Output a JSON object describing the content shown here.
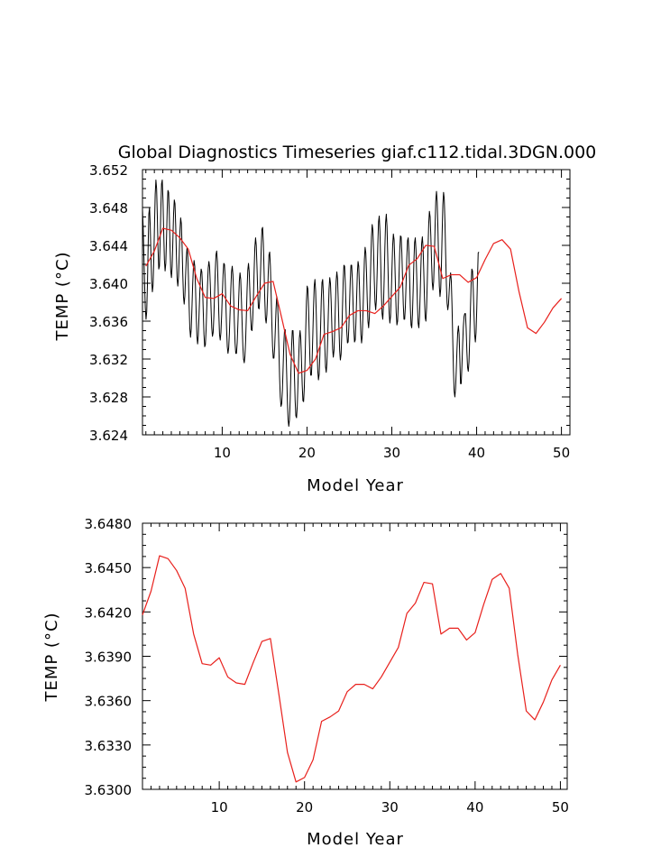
{
  "page_title": "Global Diagnostics Timeseries giaf.c112.tidal.3DGN.000",
  "chart_data": [
    {
      "type": "line",
      "title": "Global Diagnostics Timeseries giaf.c112.tidal.3DGN.000",
      "xlabel": "Model Year",
      "ylabel": "TEMP (°C)",
      "xlim": [
        0.6,
        51.0
      ],
      "ylim": [
        3.624,
        3.652
      ],
      "x_ticks": [
        10,
        20,
        30,
        40,
        50
      ],
      "y_ticks": [
        "3.624",
        "3.628",
        "3.632",
        "3.636",
        "3.640",
        "3.644",
        "3.648",
        "3.652"
      ],
      "series": [
        {
          "kind": "monthly",
          "color": "#000000",
          "x_start": 0.6,
          "x_step": 0.0833333,
          "values": [
            3.6478,
            3.6459,
            3.6429,
            3.6399,
            3.6374,
            3.6362,
            3.637,
            3.6398,
            3.6438,
            3.6473,
            3.648,
            3.646,
            3.6429,
            3.6403,
            3.6391,
            3.6398,
            3.6425,
            3.6461,
            3.6494,
            3.6509,
            3.65,
            3.6471,
            3.6437,
            3.6415,
            3.6418,
            3.6444,
            3.6479,
            3.6505,
            3.6509,
            3.6488,
            3.6455,
            3.6425,
            3.6413,
            3.6421,
            3.6447,
            3.6478,
            3.6498,
            3.6496,
            3.6472,
            3.6438,
            3.6413,
            3.6406,
            3.6418,
            3.6445,
            3.6473,
            3.6488,
            3.6484,
            3.6461,
            3.643,
            3.6405,
            3.6397,
            3.6407,
            3.643,
            3.6455,
            3.6469,
            3.6463,
            3.644,
            3.641,
            3.6386,
            3.6378,
            3.6387,
            3.6408,
            3.6427,
            3.6437,
            3.6431,
            3.6407,
            3.6376,
            3.6352,
            3.6343,
            3.6352,
            3.6374,
            3.6398,
            3.6416,
            3.6424,
            3.6418,
            3.6397,
            3.6368,
            3.6344,
            3.6336,
            3.6345,
            3.6366,
            3.6388,
            3.6406,
            3.6415,
            3.6412,
            3.6396,
            3.637,
            3.6346,
            3.6333,
            3.6335,
            3.6351,
            3.6374,
            3.6398,
            3.6416,
            3.6423,
            3.6417,
            3.6398,
            3.6374,
            3.6353,
            3.6344,
            3.6348,
            3.6365,
            3.6389,
            3.6413,
            3.643,
            3.6434,
            3.6423,
            3.6397,
            3.6368,
            3.6346,
            3.634,
            3.6348,
            3.6366,
            3.6389,
            3.6409,
            3.6421,
            3.642,
            3.6405,
            3.6379,
            3.6352,
            3.6333,
            3.6326,
            3.6332,
            3.6348,
            3.637,
            3.6394,
            3.6412,
            3.6418,
            3.6409,
            3.6386,
            3.6359,
            3.6337,
            3.6326,
            3.6326,
            3.6337,
            3.6357,
            3.6381,
            3.6402,
            3.6411,
            3.6404,
            3.6383,
            3.6357,
            3.6334,
            3.632,
            3.6316,
            3.6323,
            3.634,
            3.6366,
            3.6393,
            3.6414,
            3.6421,
            3.6412,
            3.639,
            3.6366,
            3.6351,
            3.635,
            3.6362,
            3.6385,
            3.6414,
            3.6438,
            3.6448,
            3.644,
            3.6418,
            3.6392,
            3.6374,
            3.6373,
            3.6386,
            3.641,
            3.6437,
            3.6457,
            3.6459,
            3.6443,
            3.6414,
            3.6384,
            3.6363,
            3.6358,
            3.6367,
            3.6387,
            3.6412,
            3.643,
            3.6433,
            3.6418,
            3.639,
            3.6359,
            3.6334,
            3.6321,
            3.6321,
            3.6332,
            3.6352,
            3.6373,
            3.6386,
            3.6382,
            3.6362,
            3.6332,
            3.6301,
            3.628,
            3.627,
            3.6273,
            3.6287,
            3.6311,
            3.6336,
            3.6351,
            3.6351,
            3.6333,
            3.6305,
            3.6276,
            3.6256,
            3.6249,
            3.6256,
            3.6277,
            3.6306,
            3.6333,
            3.635,
            3.635,
            3.6332,
            3.6303,
            3.6276,
            3.626,
            3.6258,
            3.627,
            3.6293,
            3.632,
            3.6342,
            3.635,
            3.6341,
            3.6318,
            3.6293,
            3.6276,
            3.6275,
            3.629,
            3.6317,
            3.6351,
            3.6381,
            3.6397,
            3.6394,
            3.6374,
            3.6345,
            3.6318,
            3.6303,
            3.6303,
            3.6319,
            3.6345,
            3.6374,
            3.6397,
            3.6404,
            3.6392,
            3.6365,
            3.6333,
            3.6308,
            3.6298,
            3.6304,
            3.6324,
            3.6353,
            3.6382,
            3.6401,
            3.6404,
            3.6388,
            3.6361,
            3.6332,
            3.6312,
            3.6306,
            3.6316,
            3.634,
            3.6369,
            3.6394,
            3.6406,
            3.64,
            3.638,
            3.6353,
            3.6331,
            3.6322,
            3.6329,
            3.635,
            3.6378,
            3.6402,
            3.6412,
            3.6405,
            3.6382,
            3.6353,
            3.6329,
            3.6319,
            3.6325,
            3.6346,
            3.6375,
            3.6403,
            3.6419,
            3.6418,
            3.64,
            3.6374,
            3.635,
            3.6337,
            3.6338,
            3.6353,
            3.6378,
            3.6403,
            3.6419,
            3.6419,
            3.6403,
            3.6377,
            3.6352,
            3.6338,
            3.634,
            3.6358,
            3.6384,
            3.641,
            3.6423,
            3.6418,
            3.6397,
            3.6369,
            3.6346,
            3.6337,
            3.6345,
            3.6368,
            3.6398,
            3.6425,
            3.6438,
            3.6432,
            3.6411,
            3.6383,
            3.636,
            3.6353,
            3.6364,
            3.6389,
            3.6421,
            3.6449,
            3.6462,
            3.6456,
            3.6433,
            3.6403,
            3.638,
            3.6372,
            3.6383,
            3.641,
            3.6441,
            3.6465,
            3.6471,
            3.6455,
            3.6424,
            3.6391,
            3.6368,
            3.6362,
            3.6376,
            3.6405,
            3.6438,
            3.6464,
            3.6473,
            3.646,
            3.643,
            3.6396,
            3.6369,
            3.6358,
            3.6365,
            3.6387,
            3.6415,
            3.644,
            3.6452,
            3.6446,
            3.6424,
            3.6395,
            3.6369,
            3.6356,
            3.636,
            3.6379,
            3.6408,
            3.6434,
            3.645,
            3.6449,
            3.6432,
            3.6405,
            3.6378,
            3.6362,
            3.6362,
            3.6376,
            3.64,
            3.6426,
            3.6445,
            3.6448,
            3.6433,
            3.6405,
            3.6375,
            3.6356,
            3.6353,
            3.6367,
            3.6393,
            3.6422,
            3.6443,
            3.6448,
            3.6435,
            3.6408,
            3.6378,
            3.6358,
            3.6353,
            3.6365,
            3.639,
            3.6419,
            3.6442,
            3.6449,
            3.6438,
            3.6413,
            3.6384,
            3.6364,
            3.636,
            3.6374,
            3.6402,
            3.6436,
            3.6463,
            3.6476,
            3.647,
            3.645,
            3.6423,
            3.6401,
            3.6393,
            3.6402,
            3.6427,
            3.6459,
            3.6487,
            3.6497,
            3.6486,
            3.6459,
            3.6425,
            3.6397,
            3.6386,
            3.6394,
            3.6419,
            3.6453,
            3.6483,
            3.6496,
            3.6489,
            3.6464,
            3.643,
            3.6399,
            3.6379,
            3.6372,
            3.6378,
            3.6392,
            3.6405,
            3.6411,
            3.6402,
            3.6376,
            3.6341,
            3.6308,
            3.6286,
            3.628,
            3.6289,
            3.6308,
            3.633,
            3.6348,
            3.6355,
            3.6346,
            3.6321,
            3.6294,
            3.6294,
            3.6313,
            3.6335,
            3.6354,
            3.6365,
            3.6368,
            3.6368,
            3.6352,
            3.6328,
            3.6311,
            3.6307,
            3.6317,
            3.6341,
            3.6372,
            3.6399,
            3.6415,
            3.6413,
            3.6395,
            3.6369,
            3.6346,
            3.6338,
            3.6348,
            3.6373,
            3.6405,
            3.6432,
            3.6433
          ]
        },
        {
          "kind": "annual mean",
          "color": "#e8201c",
          "x": [
            1,
            2,
            3,
            4,
            5,
            6,
            7,
            8,
            9,
            10,
            11,
            12,
            13,
            14,
            15,
            16,
            17,
            18,
            19,
            20,
            21,
            22,
            23,
            24,
            25,
            26,
            27,
            28,
            29,
            30,
            31,
            32,
            33,
            34,
            35,
            36,
            37,
            38,
            39,
            40,
            41,
            42,
            43,
            44,
            45,
            46,
            47,
            48,
            49,
            50
          ],
          "values": [
            3.6418,
            3.6434,
            3.6458,
            3.6456,
            3.6448,
            3.6436,
            3.6405,
            3.6385,
            3.6384,
            3.6389,
            3.6376,
            3.6372,
            3.6371,
            3.6386,
            3.64,
            3.6402,
            3.6364,
            3.6325,
            3.6305,
            3.6308,
            3.632,
            3.6346,
            3.6349,
            3.6353,
            3.6366,
            3.6371,
            3.6371,
            3.6368,
            3.6376,
            3.6386,
            3.6396,
            3.6419,
            3.6426,
            3.644,
            3.6439,
            3.6405,
            3.6409,
            3.6409,
            3.6401,
            3.6406,
            3.6425,
            3.6442,
            3.6446,
            3.6436,
            3.6391,
            3.6353,
            3.6347,
            3.6359,
            3.6374,
            3.6384
          ]
        }
      ]
    },
    {
      "type": "line",
      "title": "",
      "xlabel": "Model Year",
      "ylabel": "TEMP (°C)",
      "xlim": [
        1.0,
        50.8
      ],
      "ylim": [
        3.63,
        3.648
      ],
      "x_ticks": [
        10,
        20,
        30,
        40,
        50
      ],
      "y_ticks": [
        "3.6300",
        "3.6330",
        "3.6360",
        "3.6390",
        "3.6420",
        "3.6450",
        "3.6480"
      ],
      "series": [
        {
          "kind": "annual mean",
          "color": "#e8201c",
          "x": [
            1,
            2,
            3,
            4,
            5,
            6,
            7,
            8,
            9,
            10,
            11,
            12,
            13,
            14,
            15,
            16,
            17,
            18,
            19,
            20,
            21,
            22,
            23,
            24,
            25,
            26,
            27,
            28,
            29,
            30,
            31,
            32,
            33,
            34,
            35,
            36,
            37,
            38,
            39,
            40,
            41,
            42,
            43,
            44,
            45,
            46,
            47,
            48,
            49,
            50
          ],
          "values": [
            3.6418,
            3.6434,
            3.6458,
            3.6456,
            3.6448,
            3.6436,
            3.6405,
            3.6385,
            3.6384,
            3.6389,
            3.6376,
            3.6372,
            3.6371,
            3.6386,
            3.64,
            3.6402,
            3.6364,
            3.6325,
            3.6305,
            3.6308,
            3.632,
            3.6346,
            3.6349,
            3.6353,
            3.6366,
            3.6371,
            3.6371,
            3.6368,
            3.6376,
            3.6386,
            3.6396,
            3.6419,
            3.6426,
            3.644,
            3.6439,
            3.6405,
            3.6409,
            3.6409,
            3.6401,
            3.6406,
            3.6425,
            3.6442,
            3.6446,
            3.6436,
            3.6391,
            3.6353,
            3.6347,
            3.6359,
            3.6374,
            3.6384
          ]
        }
      ]
    }
  ]
}
